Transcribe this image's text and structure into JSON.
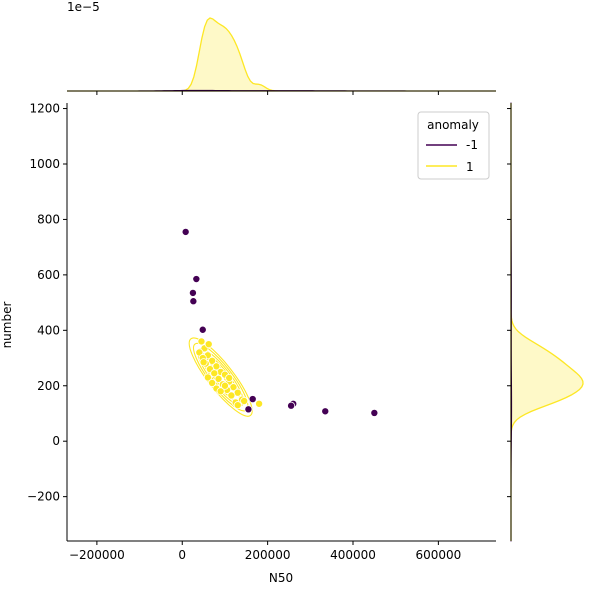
{
  "chart_data": {
    "type": "scatter",
    "xlabel": "N50",
    "ylabel": "number",
    "xlim": [
      -270000,
      735000
    ],
    "ylim": [
      -360,
      1220
    ],
    "x_ticks": [
      {
        "value": -200000,
        "label": "−200000"
      },
      {
        "value": 0,
        "label": "0"
      },
      {
        "value": 200000,
        "label": "200000"
      },
      {
        "value": 400000,
        "label": "400000"
      },
      {
        "value": 600000,
        "label": "600000"
      }
    ],
    "y_ticks": [
      {
        "value": -200,
        "label": "−200"
      },
      {
        "value": 0,
        "label": "0"
      },
      {
        "value": 200,
        "label": "200"
      },
      {
        "value": 400,
        "label": "400"
      },
      {
        "value": 600,
        "label": "600"
      },
      {
        "value": 800,
        "label": "800"
      },
      {
        "value": 1000,
        "label": "1000"
      },
      {
        "value": 1200,
        "label": "1200"
      }
    ],
    "top_marginal_offset_label": "1e−5",
    "legend": {
      "title": "anomaly",
      "placement": "top-right",
      "entries": [
        {
          "label": "-1",
          "color": "#440154"
        },
        {
          "label": "1",
          "color": "#fde725"
        }
      ]
    },
    "series": [
      {
        "name": "-1",
        "color": "#440154",
        "points": [
          [
            8000,
            755
          ],
          [
            33000,
            585
          ],
          [
            25000,
            535
          ],
          [
            26000,
            505
          ],
          [
            48000,
            402
          ],
          [
            165000,
            152
          ],
          [
            155000,
            115
          ],
          [
            260000,
            135
          ],
          [
            255000,
            128
          ],
          [
            335000,
            108
          ],
          [
            450000,
            102
          ]
        ]
      },
      {
        "name": "1",
        "color": "#fde725",
        "points": [
          [
            45000,
            360
          ],
          [
            52000,
            335
          ],
          [
            40000,
            320
          ],
          [
            60000,
            310
          ],
          [
            48000,
            300
          ],
          [
            70000,
            290
          ],
          [
            55000,
            280
          ],
          [
            80000,
            270
          ],
          [
            65000,
            260
          ],
          [
            90000,
            250
          ],
          [
            75000,
            245
          ],
          [
            100000,
            240
          ],
          [
            60000,
            230
          ],
          [
            85000,
            225
          ],
          [
            110000,
            215
          ],
          [
            70000,
            210
          ],
          [
            95000,
            205
          ],
          [
            120000,
            195
          ],
          [
            80000,
            190
          ],
          [
            105000,
            185
          ],
          [
            130000,
            175
          ],
          [
            90000,
            180
          ],
          [
            115000,
            165
          ],
          [
            140000,
            150
          ],
          [
            125000,
            140
          ],
          [
            145000,
            145
          ],
          [
            180000,
            135
          ],
          [
            130000,
            130
          ],
          [
            50000,
            285
          ],
          [
            100000,
            200
          ],
          [
            62000,
            350
          ],
          [
            110000,
            228
          ]
        ]
      }
    ],
    "density_contour_series": "1"
  }
}
